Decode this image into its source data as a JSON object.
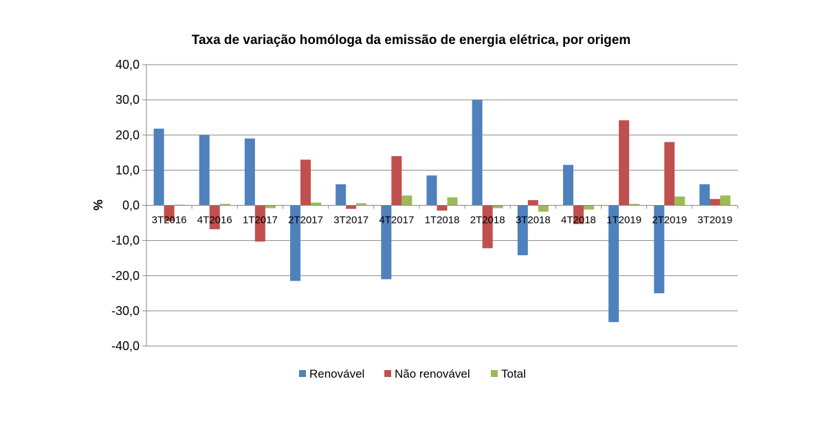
{
  "chart_data": {
    "type": "bar",
    "title": "Taxa de variação homóloga da emissão de energia elétrica, por origem",
    "ylabel": "%",
    "xlabel": "",
    "ylim": [
      -40,
      40
    ],
    "yticks": [
      40,
      30,
      20,
      10,
      0,
      -10,
      -20,
      -30,
      -40
    ],
    "ytick_labels": [
      "40,0",
      "30,0",
      "20,0",
      "10,0",
      "0,0",
      "-10,0",
      "-20,0",
      "-30,0",
      "-40,0"
    ],
    "grid": true,
    "legend_position": "bottom",
    "categories": [
      "3T2016",
      "4T2016",
      "1T2017",
      "2T2017",
      "3T2017",
      "4T2017",
      "1T2018",
      "2T2018",
      "3T2018",
      "4T2018",
      "1T2019",
      "2T2019",
      "3T2019"
    ],
    "series": [
      {
        "name": "Renovável",
        "color": "#4F81BD",
        "values": [
          21.8,
          20.0,
          19.0,
          -21.5,
          6.0,
          -21.0,
          8.5,
          30.0,
          -14.2,
          11.5,
          -33.2,
          -25.0,
          6.0
        ]
      },
      {
        "name": "Não renovável",
        "color": "#C0504D",
        "values": [
          -4.5,
          -6.8,
          -10.3,
          13.0,
          -1.0,
          14.0,
          -1.5,
          -12.2,
          1.5,
          -5.3,
          24.2,
          18.0,
          1.8
        ]
      },
      {
        "name": "Total",
        "color": "#9BBB59",
        "values": [
          0.2,
          0.4,
          -0.8,
          0.8,
          0.6,
          2.8,
          2.3,
          -0.8,
          -1.8,
          -1.2,
          0.4,
          2.5,
          2.8
        ]
      }
    ]
  }
}
